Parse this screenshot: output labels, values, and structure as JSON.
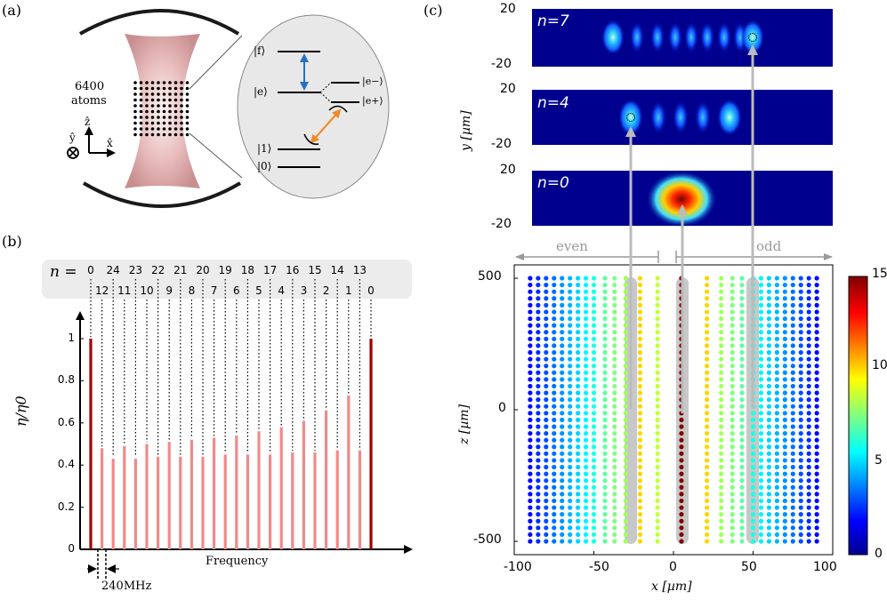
{
  "panel_a": {
    "label": "(a)",
    "atom_count": "6400",
    "atom_word": "atoms",
    "axes": {
      "z": "ẑ",
      "y": "ŷ",
      "x": "x̂"
    },
    "levels": [
      "|f⟩",
      "|e⟩",
      "|e−⟩",
      "|e+⟩",
      "|1⟩",
      "|0⟩"
    ],
    "colors": {
      "mode": "#d9a3a5",
      "blue_arrow": "#2a6fc0",
      "orange_arrow": "#f08a24",
      "bubble": "#e8e8e8"
    }
  },
  "panel_b": {
    "label": "(b)",
    "n_prefix": "n =",
    "top_row": [
      "0",
      "24",
      "23",
      "22",
      "21",
      "20",
      "19",
      "18",
      "17",
      "16",
      "15",
      "14",
      "13"
    ],
    "bottom_row": [
      "12",
      "11",
      "10",
      "9",
      "8",
      "7",
      "6",
      "5",
      "4",
      "3",
      "2",
      "1",
      "0"
    ],
    "freq_label": "Frequency",
    "spacing_label": "240MHz",
    "ylabel": "η/η0",
    "yticks": [
      "0",
      "0.2",
      "0.4",
      "0.6",
      "0.8",
      "1"
    ]
  },
  "panel_c": {
    "label": "(c)",
    "modes": [
      {
        "n": "n=7"
      },
      {
        "n": "n=4"
      },
      {
        "n": "n=0"
      }
    ],
    "mode_y_ticks": [
      "20",
      "-20"
    ],
    "mode_ylabel": "y [µm]",
    "even_label": "even",
    "odd_label": "odd",
    "xlabel": "x [µm]",
    "zlabel": "z [µm]",
    "xticks": [
      "-100",
      "-50",
      "0",
      "50",
      "100"
    ],
    "zticks": [
      "500",
      "0",
      "-500"
    ],
    "cbar_ticks": [
      "15",
      "10",
      "5",
      "0"
    ]
  },
  "chart_data": [
    {
      "type": "bar",
      "title": "",
      "xlabel": "Frequency",
      "ylabel": "η/η0",
      "ylim": [
        0,
        1.1
      ],
      "series": [
        {
          "values": [
            1.0,
            0.48,
            0.43,
            0.49,
            0.43,
            0.5,
            0.44,
            0.51,
            0.44,
            0.52,
            0.44,
            0.53,
            0.45,
            0.54,
            0.45,
            0.56,
            0.45,
            0.58,
            0.46,
            0.61,
            0.46,
            0.66,
            0.47,
            0.73,
            0.47,
            1.0
          ]
        }
      ],
      "n_order": [
        "0",
        "12",
        "24",
        "11",
        "23",
        "10",
        "22",
        "9",
        "21",
        "8",
        "20",
        "7",
        "19",
        "6",
        "18",
        "5",
        "17",
        "4",
        "16",
        "3",
        "15",
        "2",
        "14",
        "1",
        "13",
        "0"
      ]
    },
    {
      "type": "scatter",
      "title": "",
      "xlabel": "x [µm]",
      "ylabel": "z [µm]",
      "xlim": [
        -100,
        100
      ],
      "ylim": [
        -520,
        520
      ],
      "colorbar_range": [
        0,
        15
      ],
      "series": [
        {
          "x": [
            -90,
            -85,
            -80,
            -75,
            -70,
            -65,
            -60,
            -55,
            -50,
            -43,
            -37,
            -30,
            -21,
            -10,
            5,
            21,
            30,
            37,
            43,
            50,
            55,
            60,
            65,
            70,
            75,
            80,
            85,
            90
          ],
          "color_value": [
            2,
            2.5,
            3,
            3.5,
            4,
            4.5,
            5,
            5.5,
            6,
            7,
            7.5,
            8,
            10,
            8.5,
            15,
            10,
            8,
            7.5,
            7,
            6,
            5.5,
            5,
            4.5,
            4,
            3.5,
            3,
            2.5,
            2
          ]
        }
      ]
    }
  ]
}
